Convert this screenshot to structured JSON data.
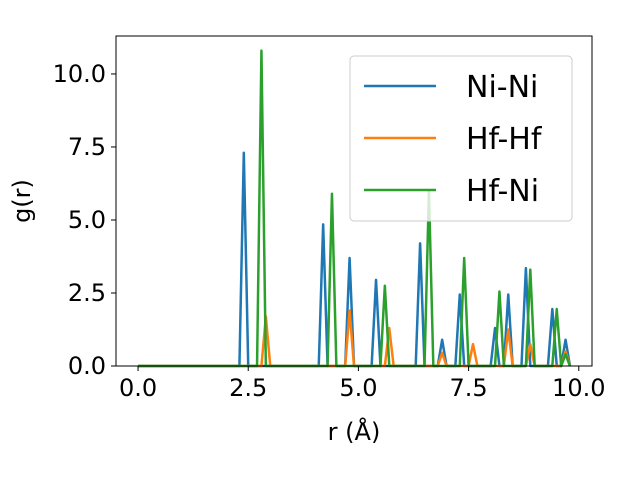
{
  "chart_data": {
    "type": "line",
    "xlabel": "r (Å)",
    "ylabel": "g(r)",
    "xlim": [
      -0.5,
      10.3
    ],
    "ylim": [
      0,
      11.3
    ],
    "xticks": [
      0.0,
      2.5,
      5.0,
      7.5,
      10.0
    ],
    "xtick_labels": [
      "0.0",
      "2.5",
      "5.0",
      "7.5",
      "10.0"
    ],
    "yticks": [
      0.0,
      2.5,
      5.0,
      7.5,
      10.0
    ],
    "ytick_labels": [
      "0.0",
      "2.5",
      "5.0",
      "7.5",
      "10.0"
    ],
    "grid": false,
    "legend_position": "top-right",
    "series": [
      {
        "name": "Ni-Ni",
        "color": "#1f77b4",
        "x": [
          0.0,
          2.3,
          2.4,
          2.5,
          4.1,
          4.2,
          4.3,
          4.7,
          4.8,
          4.9,
          5.3,
          5.4,
          5.5,
          6.3,
          6.4,
          6.5,
          6.8,
          6.9,
          7.0,
          7.2,
          7.3,
          7.4,
          8.0,
          8.1,
          8.2,
          8.3,
          8.4,
          8.5,
          8.7,
          8.8,
          8.9,
          9.3,
          9.4,
          9.5,
          9.6,
          9.7,
          9.8
        ],
        "y": [
          0,
          0,
          7.3,
          0,
          0,
          4.85,
          0,
          0,
          3.7,
          0,
          0,
          2.95,
          0,
          0,
          4.2,
          0,
          0,
          0.9,
          0,
          0,
          2.45,
          0,
          0,
          1.3,
          0,
          0,
          2.45,
          0,
          0,
          3.35,
          0,
          0,
          1.95,
          0,
          0,
          0.9,
          0
        ]
      },
      {
        "name": "Hf-Hf",
        "color": "#ff7f0e",
        "x": [
          0.0,
          2.8,
          2.9,
          3.0,
          4.7,
          4.8,
          4.9,
          5.6,
          5.7,
          5.8,
          6.8,
          6.9,
          7.0,
          7.5,
          7.6,
          7.7,
          8.3,
          8.4,
          8.5,
          8.8,
          8.9,
          9.0,
          9.6,
          9.7,
          9.8
        ],
        "y": [
          0,
          0,
          1.7,
          0,
          0,
          1.9,
          0,
          0,
          1.3,
          0,
          0,
          0.45,
          0,
          0,
          0.75,
          0,
          0,
          1.25,
          0,
          0,
          0.75,
          0,
          0,
          0.5,
          0
        ]
      },
      {
        "name": "Hf-Ni",
        "color": "#2ca02c",
        "x": [
          0.0,
          2.7,
          2.8,
          2.9,
          4.3,
          4.4,
          4.5,
          5.5,
          5.6,
          5.7,
          6.5,
          6.6,
          6.7,
          7.3,
          7.4,
          7.5,
          8.1,
          8.2,
          8.3,
          8.8,
          8.9,
          9.0,
          9.4,
          9.5,
          9.6,
          9.7,
          9.8
        ],
        "y": [
          0,
          0,
          10.8,
          0,
          0,
          5.9,
          0,
          0,
          2.75,
          0,
          0,
          6.0,
          0,
          0,
          3.7,
          0,
          0,
          2.55,
          0,
          0,
          3.3,
          0,
          0,
          1.95,
          0,
          0.4,
          0
        ]
      }
    ]
  }
}
